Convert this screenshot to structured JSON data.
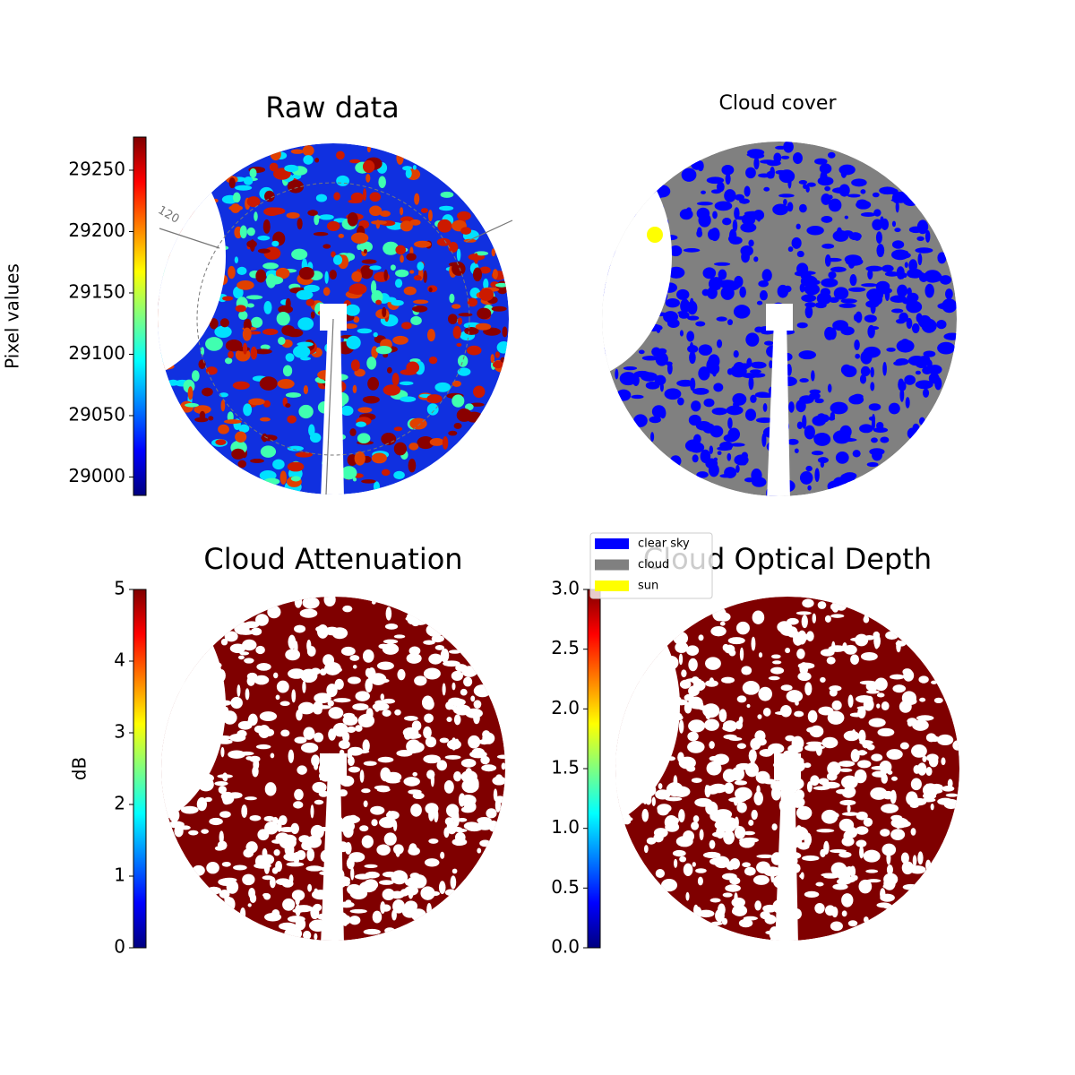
{
  "chart_data": [
    {
      "type": "image",
      "title": "Raw data",
      "ylabel": "Pixel values",
      "colormap": "jet",
      "ylim": [
        28985,
        29277
      ],
      "yticks": [
        29000,
        29050,
        29100,
        29150,
        29200,
        29250
      ],
      "annotations": [
        "120"
      ]
    },
    {
      "type": "classes",
      "title": "Cloud cover",
      "series": [
        {
          "name": "clear sky",
          "color": "#0000ff"
        },
        {
          "name": "cloud",
          "color": "#808080"
        },
        {
          "name": "sun",
          "color": "#ffff00"
        }
      ]
    },
    {
      "type": "image",
      "title": "Cloud Attenuation",
      "ylabel": "dB",
      "colormap": "jet",
      "ylim": [
        0,
        5
      ],
      "yticks": [
        0,
        1,
        2,
        3,
        4,
        5
      ]
    },
    {
      "type": "image",
      "title": "Cloud Optical Depth",
      "colormap": "jet",
      "ylim": [
        0,
        3
      ],
      "yticks": [
        {
          "value": 0,
          "label": "0.0"
        },
        0.5,
        {
          "value": 1,
          "label": "1.0"
        },
        1.5,
        {
          "value": 2,
          "label": "2.0"
        },
        2.5,
        {
          "value": 3,
          "label": "3.0"
        }
      ]
    }
  ]
}
